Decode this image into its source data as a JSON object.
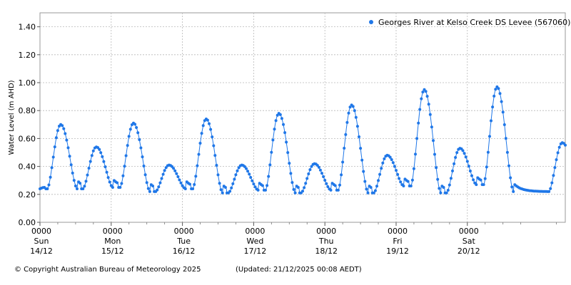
{
  "chart_data": {
    "type": "scatter",
    "ylabel": "Water Level (m AHD)",
    "ylim": [
      0,
      1.5
    ],
    "yticks": [
      0.0,
      0.2,
      0.4,
      0.6,
      0.8,
      1.0,
      1.2,
      1.4
    ],
    "ytick_labels": [
      "0.00",
      "0.20",
      "0.40",
      "0.60",
      "0.80",
      "1.00",
      "1.20",
      "1.40"
    ],
    "xlim_hours": [
      0,
      177
    ],
    "xticks": [
      {
        "hour": 0,
        "time": "0000",
        "day": "Sun",
        "date": "14/12"
      },
      {
        "hour": 24,
        "time": "0000",
        "day": "Mon",
        "date": "15/12"
      },
      {
        "hour": 48,
        "time": "0000",
        "day": "Tue",
        "date": "16/12"
      },
      {
        "hour": 72,
        "time": "0000",
        "day": "Wed",
        "date": "17/12"
      },
      {
        "hour": 96,
        "time": "0000",
        "day": "Thu",
        "date": "18/12"
      },
      {
        "hour": 120,
        "time": "0000",
        "day": "Fri",
        "date": "19/12"
      },
      {
        "hour": 144,
        "time": "0000",
        "day": "Sat",
        "date": "20/12"
      }
    ],
    "grid": true,
    "legend_position": "top-right",
    "series": [
      {
        "name": "Georges River at Kelso Creek DS Levee (567060)",
        "color": "#1f77e8",
        "base_level": 0.22,
        "tides": [
          {
            "peak_hour": 7.0,
            "peak_level": 0.7,
            "trough_level": 0.24
          },
          {
            "peak_hour": 19.0,
            "peak_level": 0.54,
            "trough_level": 0.25
          },
          {
            "peak_hour": 31.5,
            "peak_level": 0.71,
            "trough_level": 0.22
          },
          {
            "peak_hour": 43.5,
            "peak_level": 0.41,
            "trough_level": 0.24
          },
          {
            "peak_hour": 56.0,
            "peak_level": 0.74,
            "trough_level": 0.21
          },
          {
            "peak_hour": 68.0,
            "peak_level": 0.41,
            "trough_level": 0.23
          },
          {
            "peak_hour": 80.5,
            "peak_level": 0.78,
            "trough_level": 0.21
          },
          {
            "peak_hour": 92.5,
            "peak_level": 0.42,
            "trough_level": 0.23
          },
          {
            "peak_hour": 105.0,
            "peak_level": 0.84,
            "trough_level": 0.21
          },
          {
            "peak_hour": 117.0,
            "peak_level": 0.48,
            "trough_level": 0.26
          },
          {
            "peak_hour": 129.5,
            "peak_level": 0.95,
            "trough_level": 0.21
          },
          {
            "peak_hour": 141.5,
            "peak_level": 0.53,
            "trough_level": 0.27
          },
          {
            "peak_hour": 154.0,
            "peak_level": 0.97,
            "trough_level": 0.22
          },
          {
            "peak_hour": 176.0,
            "peak_level": 0.57,
            "trough_level": 0.29
          }
        ]
      }
    ]
  },
  "footer": {
    "copyright": "© Copyright Australian Bureau of Meteorology 2025",
    "updated": "(Updated: 21/12/2025 00:08 AEDT)"
  }
}
